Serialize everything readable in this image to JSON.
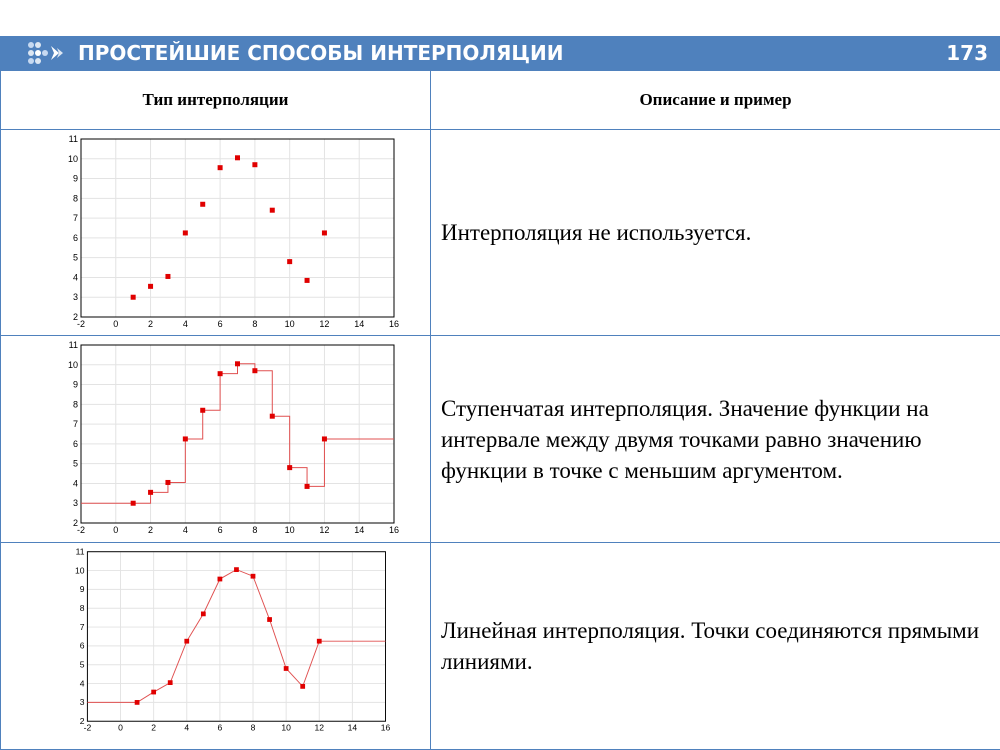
{
  "header": {
    "title": "ПРОСТЕЙШИЕ СПОСОБЫ ИНТЕРПОЛЯЦИИ",
    "page_number": "173",
    "logo_icon": "dots-arrow-icon",
    "background_color": "#4f81bd"
  },
  "table": {
    "headers": [
      "Тип интерполяции",
      "Описание и пример"
    ],
    "rows": [
      {
        "description": "Интерполяция не используется."
      },
      {
        "description": "Ступенчатая интерполяция. Значение функции на интервале между двумя точками равно значению функции в точке с меньшим аргументом."
      },
      {
        "description": "Линейная интерполяция. Точки соединяются прямыми линиями."
      }
    ]
  },
  "chart_data": [
    {
      "type": "scatter",
      "interpolation": "none",
      "x": [
        1,
        2,
        3,
        4,
        5,
        6,
        7,
        8,
        9,
        10,
        11,
        12
      ],
      "y": [
        3,
        3.55,
        4.05,
        6.25,
        7.7,
        9.55,
        10.05,
        9.7,
        7.4,
        4.8,
        3.85,
        6.25
      ],
      "xlim": [
        -2,
        16
      ],
      "ylim": [
        2,
        11
      ],
      "xticks": [
        -2,
        0,
        2,
        4,
        6,
        8,
        10,
        12,
        14,
        16
      ],
      "yticks": [
        2,
        3,
        4,
        5,
        6,
        7,
        8,
        9,
        10,
        11
      ],
      "grid": true,
      "marker_color": "#e00000"
    },
    {
      "type": "line",
      "interpolation": "step",
      "x": [
        1,
        2,
        3,
        4,
        5,
        6,
        7,
        8,
        9,
        10,
        11,
        12
      ],
      "y": [
        3,
        3.55,
        4.05,
        6.25,
        7.7,
        9.55,
        10.05,
        9.7,
        7.4,
        4.8,
        3.85,
        6.25
      ],
      "xlim": [
        -2,
        16
      ],
      "ylim": [
        2,
        11
      ],
      "xticks": [
        -2,
        0,
        2,
        4,
        6,
        8,
        10,
        12,
        14,
        16
      ],
      "yticks": [
        2,
        3,
        4,
        5,
        6,
        7,
        8,
        9,
        10,
        11
      ],
      "grid": true,
      "marker_color": "#e00000",
      "line_color": "#e05050"
    },
    {
      "type": "line",
      "interpolation": "linear",
      "x": [
        1,
        2,
        3,
        4,
        5,
        6,
        7,
        8,
        9,
        10,
        11,
        12
      ],
      "y": [
        3,
        3.55,
        4.05,
        6.25,
        7.7,
        9.55,
        10.05,
        9.7,
        7.4,
        4.8,
        3.85,
        6.25
      ],
      "xlim": [
        -2,
        16
      ],
      "ylim": [
        2,
        11
      ],
      "xticks": [
        -2,
        0,
        2,
        4,
        6,
        8,
        10,
        12,
        14,
        16
      ],
      "yticks": [
        2,
        3,
        4,
        5,
        6,
        7,
        8,
        9,
        10,
        11
      ],
      "grid": true,
      "marker_color": "#e00000",
      "line_color": "#e05050"
    }
  ]
}
